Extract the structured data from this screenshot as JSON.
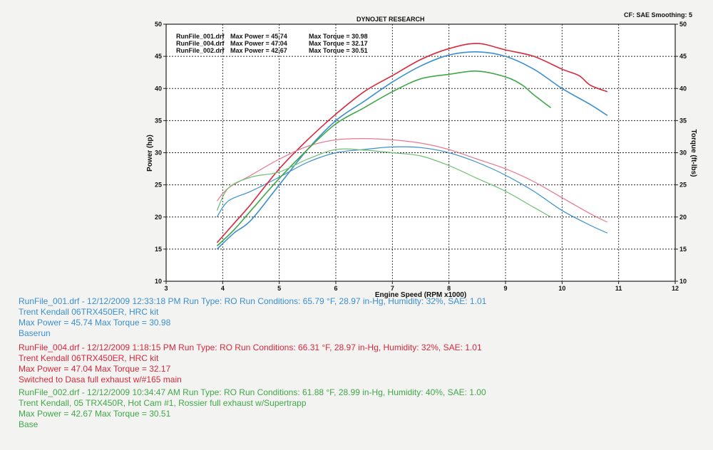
{
  "header": {
    "title": "DYNOJET RESEARCH",
    "cf_info": "CF: SAE  Smoothing: 5"
  },
  "legend": [
    {
      "file": "RunFile_001.drf",
      "max_power": "Max Power = 45.74",
      "max_torque": "Max Torque = 30.98"
    },
    {
      "file": "RunFile_004.drf",
      "max_power": "Max Power = 47.04",
      "max_torque": "Max Torque = 32.17"
    },
    {
      "file": "RunFile_002.drf",
      "max_power": "Max Power = 42.67",
      "max_torque": "Max Torque = 30.51"
    }
  ],
  "runs": [
    {
      "color": "#3a8fd0",
      "lines": [
        "RunFile_001.drf - 12/12/2009 12:33:18 PM  Run Type: RO  Run Conditions: 65.79 °F, 28.97 in-Hg,  Humidity:  32%, SAE: 1.01",
        "Trent Kendall 06TRX450ER, HRC kit",
        "Max Power = 45.74  Max Torque = 30.98",
        "Baserun"
      ]
    },
    {
      "color": "#d8283c",
      "lines": [
        "RunFile_004.drf - 12/12/2009 1:18:15 PM  Run Type: RO  Run Conditions: 66.31 °F, 28.97 in-Hg,   Humidity:  32%, SAE: 1.01",
        "Trent Kendall 06TRX450ER, HRC kit",
        "Max Power = 47.04  Max Torque = 32.17",
        "Switched to Dasa full exhaust w/#165 main"
      ]
    },
    {
      "color": "#3fa848",
      "lines": [
        "RunFile_002.drf - 12/12/2009 10:34:47 AM  Run Type: RO  Run Conditions: 61.88 °F, 28.99 in-Hg,  Humidity:  40%, SAE: 1.00",
        "Trent Kendall, 05 TRX450R, Hot Cam #1, Rossier full exhaust w/Supertrapp",
        "Max Power = 42.67  Max Torque = 30.51",
        "Base"
      ]
    }
  ],
  "chart_data": {
    "type": "line",
    "xlabel": "Engine Speed (RPM x1000)",
    "ylabel": "Power (hp)",
    "y2label": "Torque (ft-lbs)",
    "xlim": [
      3,
      12
    ],
    "ylim": [
      10,
      50
    ],
    "y2lim": [
      10,
      50
    ],
    "xticks": [
      3,
      4,
      5,
      6,
      7,
      8,
      9,
      10,
      11,
      12
    ],
    "yticks": [
      10,
      15,
      20,
      25,
      30,
      35,
      40,
      45,
      50
    ],
    "grid": true,
    "series": [
      {
        "name": "RunFile_001.drf",
        "kind": "power",
        "color": "#3a8fd0",
        "x": [
          3.9,
          4.2,
          4.5,
          5.0,
          5.5,
          6.0,
          6.5,
          7.0,
          7.5,
          8.0,
          8.5,
          9.0,
          9.5,
          10.0,
          10.5,
          10.8
        ],
        "y": [
          15.0,
          17.5,
          19.5,
          25.0,
          30.5,
          35.0,
          38.0,
          41.0,
          43.5,
          45.2,
          45.7,
          45.0,
          43.0,
          40.0,
          37.5,
          35.8
        ]
      },
      {
        "name": "RunFile_001.drf",
        "kind": "torque",
        "color": "#3a8fd0",
        "x": [
          3.9,
          4.1,
          4.5,
          5.0,
          5.5,
          6.0,
          6.5,
          7.0,
          7.5,
          8.0,
          8.5,
          9.0,
          9.5,
          10.0,
          10.5,
          10.8
        ],
        "y": [
          20.0,
          22.5,
          24.0,
          26.2,
          28.5,
          30.0,
          30.5,
          30.9,
          30.8,
          30.0,
          28.5,
          26.5,
          24.0,
          21.0,
          18.7,
          17.5
        ]
      },
      {
        "name": "RunFile_004.drf",
        "kind": "power",
        "color": "#d8283c",
        "x": [
          3.9,
          4.2,
          4.5,
          5.0,
          5.5,
          6.0,
          6.5,
          7.0,
          7.5,
          8.0,
          8.5,
          9.0,
          9.5,
          10.0,
          10.3,
          10.5,
          10.8
        ],
        "y": [
          16.0,
          19.0,
          22.0,
          27.5,
          32.0,
          36.0,
          39.5,
          42.0,
          44.5,
          46.2,
          47.0,
          46.0,
          45.0,
          43.0,
          42.0,
          40.5,
          39.5
        ]
      },
      {
        "name": "RunFile_004.drf",
        "kind": "torque",
        "color": "#e87890",
        "x": [
          3.9,
          4.1,
          4.5,
          5.0,
          5.5,
          6.0,
          6.5,
          7.0,
          7.5,
          8.0,
          8.5,
          9.0,
          9.5,
          10.0,
          10.5,
          10.8
        ],
        "y": [
          22.5,
          24.5,
          26.5,
          29.0,
          31.0,
          32.0,
          32.2,
          32.0,
          31.5,
          30.5,
          29.0,
          27.5,
          25.5,
          23.0,
          20.5,
          19.2
        ]
      },
      {
        "name": "RunFile_002.drf",
        "kind": "power",
        "color": "#3fa848",
        "x": [
          3.9,
          4.2,
          4.5,
          5.0,
          5.5,
          6.0,
          6.5,
          7.0,
          7.5,
          8.0,
          8.5,
          9.0,
          9.3,
          9.5,
          9.8
        ],
        "y": [
          15.5,
          18.0,
          21.0,
          26.0,
          30.5,
          34.5,
          37.0,
          39.5,
          41.5,
          42.2,
          42.7,
          41.8,
          40.5,
          39.0,
          37.0
        ]
      },
      {
        "name": "RunFile_002.drf",
        "kind": "torque",
        "color": "#6cc070",
        "x": [
          3.9,
          4.1,
          4.5,
          5.0,
          5.5,
          6.0,
          6.5,
          7.0,
          7.5,
          8.0,
          8.5,
          9.0,
          9.5,
          9.8
        ],
        "y": [
          21.0,
          24.5,
          26.2,
          27.0,
          29.0,
          30.5,
          30.4,
          30.0,
          29.5,
          28.0,
          26.0,
          24.0,
          21.5,
          20.0
        ]
      }
    ]
  }
}
